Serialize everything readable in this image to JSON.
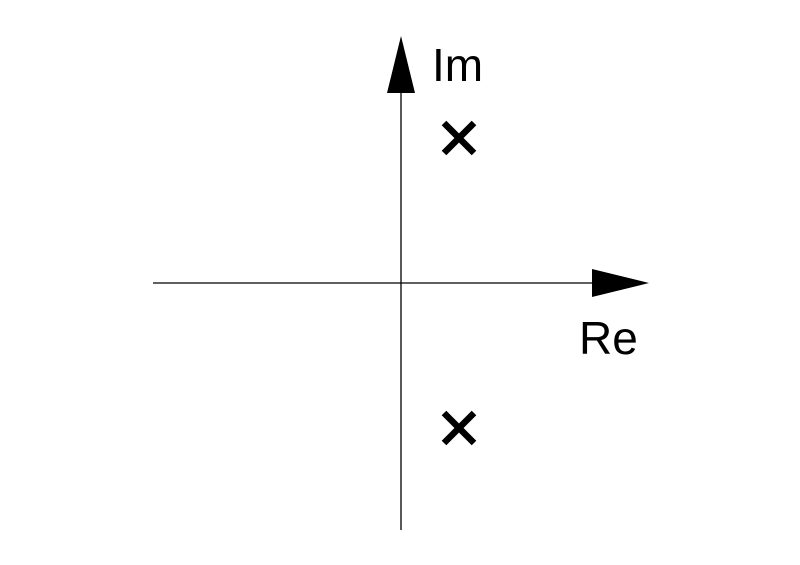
{
  "axes": {
    "imaginary_label": "Im",
    "real_label": "Re"
  },
  "poles": [
    {
      "re": 1,
      "im": 1
    },
    {
      "re": 1,
      "im": -1
    }
  ],
  "pole_marker": "cross-icon",
  "colors": {
    "ink": "#000000",
    "background": "#ffffff"
  }
}
